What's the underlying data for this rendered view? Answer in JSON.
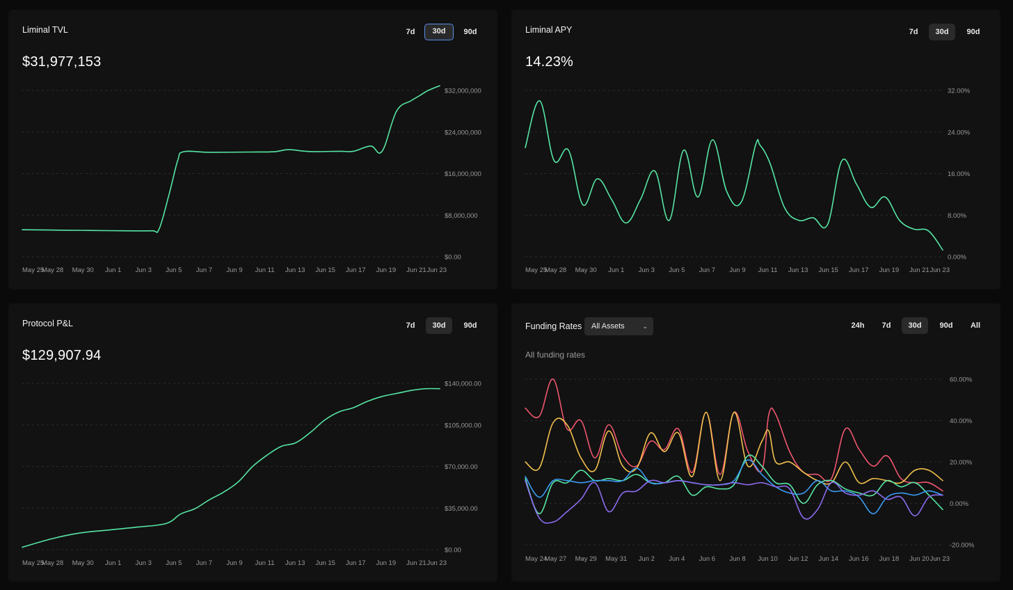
{
  "panels": {
    "tvl": {
      "title": "Liminal TVL",
      "value": "$31,977,153",
      "ranges": [
        "7d",
        "30d",
        "90d"
      ],
      "active_range": "30d"
    },
    "apy": {
      "title": "Liminal APY",
      "value": "14.23%",
      "ranges": [
        "7d",
        "30d",
        "90d"
      ],
      "active_range": "30d"
    },
    "pnl": {
      "title": "Protocol P&L",
      "value": "$129,907.94",
      "ranges": [
        "7d",
        "30d",
        "90d"
      ],
      "active_range": "30d"
    },
    "funding": {
      "title": "Funding Rates",
      "dropdown": "All Assets",
      "subtitle": "All funding rates",
      "ranges": [
        "24h",
        "7d",
        "30d",
        "90d",
        "All"
      ],
      "active_range": "30d"
    }
  },
  "colors": {
    "green": "#57e6a4",
    "red": "#f0566f",
    "yellow": "#f2c14e",
    "blue": "#3a9cf2",
    "purple": "#8c6cf0",
    "grid": "#2c2c2c",
    "tick": "#9a9a9a"
  },
  "chart_data": [
    {
      "id": "tvl",
      "type": "line",
      "title": "Liminal TVL",
      "ylim": [
        0,
        32000000
      ],
      "y_ticks": [
        "$0.00",
        "$8,000,000",
        "$16,000,000",
        "$24,000,000",
        "$32,000,000"
      ],
      "x_ticks": [
        "May 25",
        "May 28",
        "May 30",
        "Jun 1",
        "Jun 3",
        "Jun 5",
        "Jun 7",
        "Jun 9",
        "Jun 11",
        "Jun 13",
        "Jun 15",
        "Jun 17",
        "Jun 19",
        "Jun 21",
        "Jun 23"
      ],
      "x_range": [
        0,
        29
      ],
      "series": [
        {
          "name": "TVL",
          "color": "green",
          "x": [
            0,
            3,
            5,
            7,
            9,
            9.5,
            10.2,
            10.8,
            11.2,
            13,
            16,
            17.5,
            18.5,
            20,
            22,
            23,
            24.2,
            25,
            26,
            27,
            27.6,
            28.2,
            29
          ],
          "y": [
            5200000,
            5100000,
            5050000,
            5000000,
            5000000,
            5300000,
            12000000,
            18500000,
            20200000,
            20100000,
            20150000,
            20200000,
            20600000,
            20250000,
            20300000,
            20300000,
            21300000,
            20300000,
            28000000,
            30000000,
            31000000,
            32000000,
            32900000
          ]
        }
      ]
    },
    {
      "id": "apy",
      "type": "line",
      "title": "Liminal APY",
      "ylim": [
        0,
        32
      ],
      "y_ticks": [
        "0.00%",
        "8.00%",
        "16.00%",
        "24.00%",
        "32.00%"
      ],
      "x_ticks": [
        "May 25",
        "May 28",
        "May 30",
        "Jun 1",
        "Jun 3",
        "Jun 5",
        "Jun 7",
        "Jun 9",
        "Jun 11",
        "Jun 13",
        "Jun 15",
        "Jun 17",
        "Jun 19",
        "Jun 21",
        "Jun 23"
      ],
      "x_range": [
        0,
        29
      ],
      "series": [
        {
          "name": "APY",
          "color": "green",
          "x": [
            0,
            1,
            2,
            3,
            4,
            5,
            6,
            7,
            8,
            9,
            10,
            11,
            12,
            13,
            14,
            15,
            16,
            16.3,
            17,
            18,
            19,
            20,
            21,
            22,
            23,
            24,
            25,
            26,
            27,
            28,
            29
          ],
          "y": [
            21,
            30,
            18.5,
            20.5,
            10,
            15,
            11,
            6.5,
            11,
            16.5,
            7,
            20.5,
            11.5,
            22.5,
            12.5,
            10.5,
            21.5,
            21.5,
            18,
            9.5,
            7,
            7.5,
            6.2,
            18.5,
            14,
            9.5,
            11.5,
            7,
            5.3,
            5,
            1.3
          ]
        }
      ]
    },
    {
      "id": "pnl",
      "type": "line",
      "title": "Protocol P&L",
      "ylim": [
        0,
        140000
      ],
      "y_ticks": [
        "$0.00",
        "$35,000.00",
        "$70,000.00",
        "$105,000.00",
        "$140,000.00"
      ],
      "x_ticks": [
        "May 25",
        "May 28",
        "May 30",
        "Jun 1",
        "Jun 3",
        "Jun 5",
        "Jun 7",
        "Jun 9",
        "Jun 11",
        "Jun 13",
        "Jun 15",
        "Jun 17",
        "Jun 19",
        "Jun 21",
        "Jun 23"
      ],
      "x_range": [
        0,
        29
      ],
      "series": [
        {
          "name": "P&L",
          "color": "green",
          "x": [
            0,
            2,
            4,
            6,
            8,
            10,
            11,
            12,
            13,
            14,
            15,
            16,
            17,
            18,
            19,
            20,
            21,
            22,
            23,
            24,
            25,
            26,
            27,
            28,
            29
          ],
          "y": [
            2000,
            9000,
            14000,
            16500,
            19000,
            22000,
            30000,
            34500,
            42000,
            48500,
            57000,
            70000,
            79500,
            87000,
            90000,
            98500,
            109000,
            116000,
            119500,
            125000,
            129000,
            131500,
            134000,
            135500,
            135500
          ]
        }
      ]
    },
    {
      "id": "funding",
      "type": "line",
      "title": "Funding Rates",
      "subtitle": "All funding rates",
      "ylim": [
        -20,
        60
      ],
      "y_ticks": [
        "-20.00%",
        "0.00%",
        "20.00%",
        "40.00%",
        "60.00%"
      ],
      "x_ticks": [
        "May 24",
        "May 27",
        "May 29",
        "May 31",
        "Jun 2",
        "Jun 4",
        "Jun 6",
        "Jun 8",
        "Jun 10",
        "Jun 12",
        "Jun 14",
        "Jun 16",
        "Jun 18",
        "Jun 20",
        "Jun 23"
      ],
      "x_range": [
        0,
        30
      ],
      "series": [
        {
          "name": "red",
          "color": "red",
          "x": [
            0,
            1,
            2,
            3,
            4,
            5,
            6,
            7,
            8,
            9,
            10,
            11,
            12,
            13,
            14,
            15,
            16,
            17,
            17.5,
            18,
            19,
            20,
            21,
            22,
            23,
            24,
            25,
            26,
            27,
            28,
            29,
            30
          ],
          "y": [
            46,
            42,
            60,
            36,
            40,
            22,
            38,
            23,
            18,
            30,
            26,
            36,
            15,
            44,
            14,
            44,
            25,
            16,
            43,
            43,
            25,
            15,
            14,
            12,
            36,
            26,
            18,
            23,
            12,
            10,
            10,
            6
          ]
        },
        {
          "name": "yellow",
          "color": "yellow",
          "x": [
            0,
            1,
            2,
            3,
            4,
            5,
            6,
            7,
            8,
            9,
            10,
            11,
            12,
            13,
            14,
            15,
            16,
            17,
            17.5,
            18,
            19,
            20,
            21,
            22,
            23,
            24,
            25,
            26,
            27,
            28,
            29,
            30
          ],
          "y": [
            20,
            17,
            39,
            38,
            22,
            16,
            35,
            18,
            17,
            34,
            25,
            34,
            13,
            44,
            11,
            44,
            18,
            30,
            35,
            20,
            20,
            15,
            11,
            10,
            20,
            10,
            12,
            11,
            10,
            16,
            16,
            11
          ]
        },
        {
          "name": "green",
          "color": "green",
          "x": [
            0,
            1,
            2,
            3,
            4,
            5,
            6,
            7,
            8,
            9,
            10,
            11,
            12,
            13,
            14,
            15,
            16,
            17,
            18,
            19,
            20,
            21,
            22,
            23,
            24,
            25,
            26,
            27,
            28,
            29,
            30
          ],
          "y": [
            12,
            -5,
            10,
            10,
            16,
            11,
            12,
            11,
            14,
            10,
            10,
            13,
            4,
            8,
            7,
            9,
            23,
            18,
            10,
            9,
            0,
            9,
            11,
            7,
            5,
            4,
            11,
            8,
            10,
            4,
            -3
          ]
        },
        {
          "name": "blue",
          "color": "blue",
          "x": [
            0,
            1,
            2,
            3,
            4,
            5,
            6,
            7,
            8,
            9,
            10,
            11,
            12,
            13,
            14,
            15,
            16,
            17,
            18,
            19,
            20,
            21,
            22,
            23,
            24,
            25,
            26,
            27,
            28,
            29,
            30
          ],
          "y": [
            13,
            3,
            11,
            11,
            10,
            11,
            11,
            11,
            17,
            10,
            10,
            11,
            10,
            9,
            9,
            11,
            21,
            14,
            8,
            5,
            5,
            11,
            6,
            6,
            3,
            -5,
            3,
            5,
            4,
            6,
            4
          ]
        },
        {
          "name": "purple",
          "color": "purple",
          "x": [
            0,
            1,
            2,
            3,
            4,
            5,
            6,
            7,
            8,
            9,
            10,
            11,
            12,
            13,
            14,
            15,
            16,
            17,
            18,
            19,
            20,
            21,
            22,
            23,
            24,
            25,
            26,
            27,
            28,
            29,
            30
          ],
          "y": [
            11,
            -7,
            -9,
            -4,
            2,
            10,
            -4,
            5,
            6,
            11,
            10,
            11,
            10,
            9,
            9,
            10,
            9,
            10,
            8,
            7,
            -7,
            -3,
            10,
            5,
            4,
            6,
            2,
            3,
            -6,
            3,
            4
          ]
        }
      ]
    }
  ]
}
